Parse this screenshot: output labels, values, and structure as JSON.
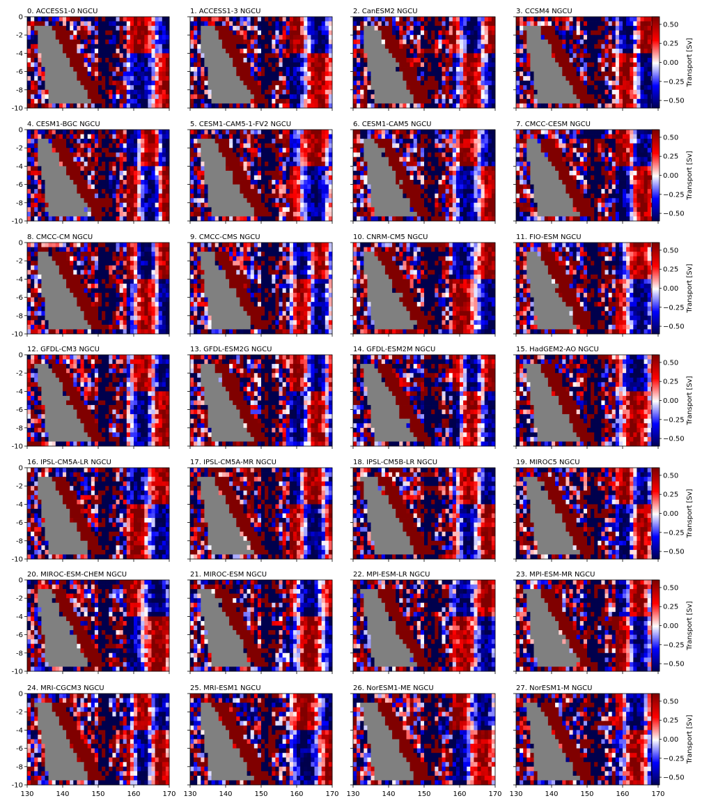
{
  "chart_data": {
    "type": "heatmap",
    "layout": {
      "rows": 7,
      "cols": 4
    },
    "panels": [
      {
        "title": "0. ACCESS1-0 NGCU"
      },
      {
        "title": "1. ACCESS1-3 NGCU"
      },
      {
        "title": "2. CanESM2 NGCU"
      },
      {
        "title": "3. CCSM4 NGCU"
      },
      {
        "title": "4. CESM1-BGC NGCU"
      },
      {
        "title": "5. CESM1-CAM5-1-FV2 NGCU"
      },
      {
        "title": "6. CESM1-CAM5 NGCU"
      },
      {
        "title": "7. CMCC-CESM NGCU"
      },
      {
        "title": "8. CMCC-CM NGCU"
      },
      {
        "title": "9. CMCC-CMS NGCU"
      },
      {
        "title": "10. CNRM-CM5 NGCU"
      },
      {
        "title": "11. FIO-ESM NGCU"
      },
      {
        "title": "12. GFDL-CM3 NGCU"
      },
      {
        "title": "13. GFDL-ESM2G NGCU"
      },
      {
        "title": "14. GFDL-ESM2M NGCU"
      },
      {
        "title": "15. HadGEM2-AO NGCU"
      },
      {
        "title": "16. IPSL-CM5A-LR NGCU"
      },
      {
        "title": "17. IPSL-CM5A-MR NGCU"
      },
      {
        "title": "18. IPSL-CM5B-LR NGCU"
      },
      {
        "title": "19. MIROC5 NGCU"
      },
      {
        "title": "20. MIROC-ESM-CHEM NGCU"
      },
      {
        "title": "21. MIROC-ESM NGCU"
      },
      {
        "title": "22. MPI-ESM-LR NGCU"
      },
      {
        "title": "23. MPI-ESM-MR NGCU"
      },
      {
        "title": "24. MRI-CGCM3 NGCU"
      },
      {
        "title": "25. MRI-ESM1 NGCU"
      },
      {
        "title": "26. NorESM1-ME NGCU"
      },
      {
        "title": "27. NorESM1-M NGCU"
      }
    ],
    "x_ticks": [
      130,
      140,
      150,
      160,
      170
    ],
    "y_ticks": [
      0,
      -2,
      -4,
      -6,
      -8,
      -10
    ],
    "xlim": [
      130,
      170
    ],
    "ylim": [
      -10,
      0
    ],
    "colorbar": {
      "label": "Transport [Sv]",
      "ticks": [
        0.5,
        0.25,
        0.0,
        -0.25,
        -0.5
      ],
      "tick_labels": [
        "0.50",
        "0.25",
        "0.00",
        "−0.25",
        "−0.50"
      ],
      "range": [
        -0.6,
        0.6
      ],
      "colormap": "seismic"
    },
    "colors": {
      "land": "#808080",
      "dark_red": "#800000",
      "dark_blue": "#00004c"
    }
  }
}
